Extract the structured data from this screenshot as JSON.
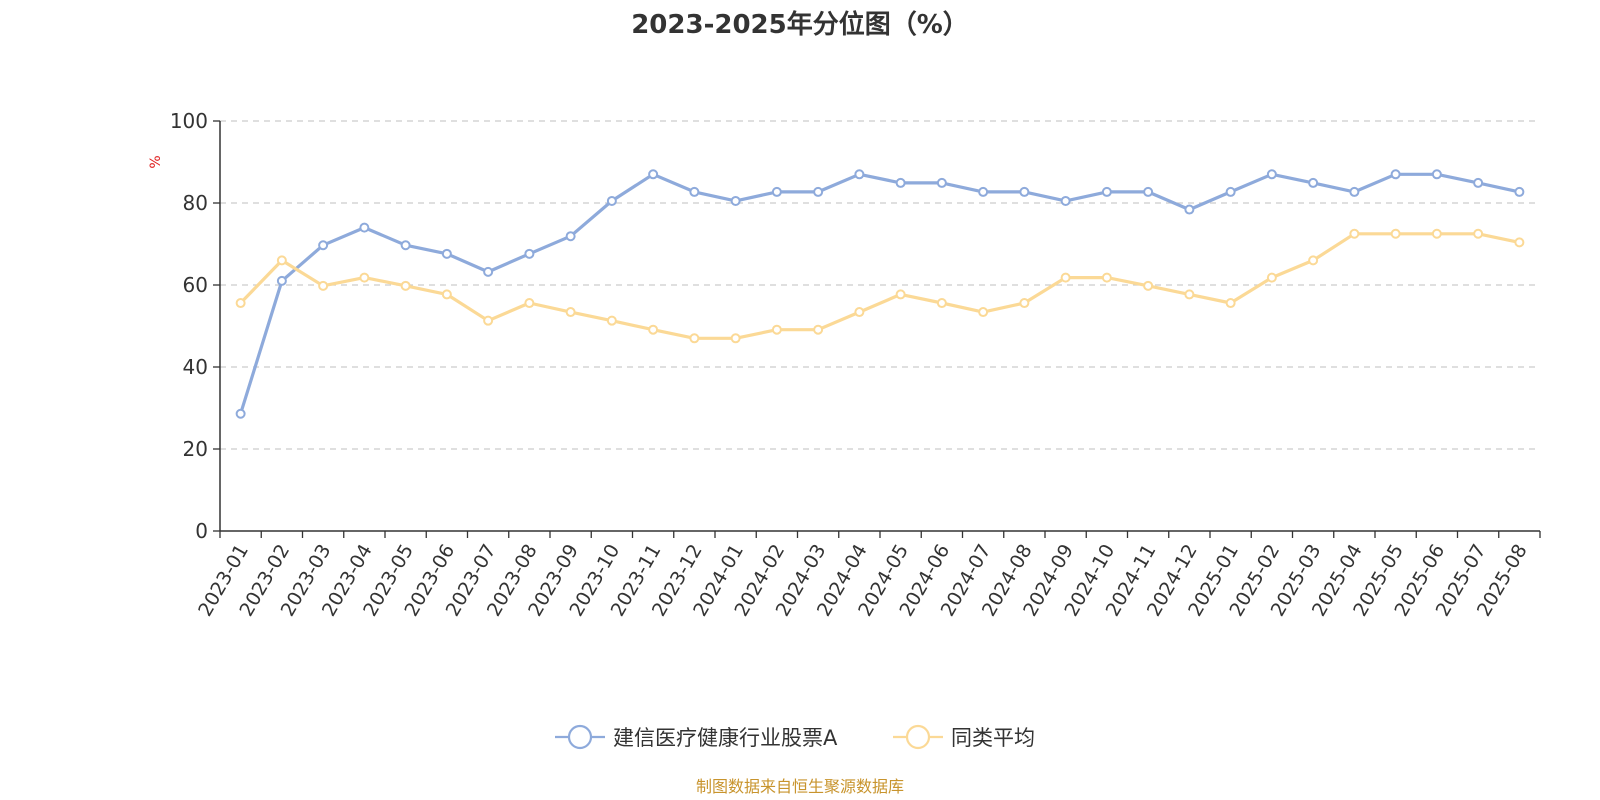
{
  "chart_data": {
    "type": "line",
    "title": "2023-2025年分位图（%）",
    "ylabel": "%",
    "xlabel": "",
    "ylim": [
      0,
      100
    ],
    "yticks": [
      "0",
      "20",
      "40",
      "60",
      "80",
      "100"
    ],
    "grid": "horizontal dashed",
    "legend_position": "bottom-center",
    "categories": [
      "2023-01",
      "2023-02",
      "2023-03",
      "2023-04",
      "2023-05",
      "2023-06",
      "2023-07",
      "2023-08",
      "2023-09",
      "2023-10",
      "2023-11",
      "2023-12",
      "2024-01",
      "2024-02",
      "2024-03",
      "2024-04",
      "2024-05",
      "2024-06",
      "2024-07",
      "2024-08",
      "2024-09",
      "2024-10",
      "2024-11",
      "2024-12",
      "2025-01",
      "2025-02",
      "2025-03",
      "2025-04",
      "2025-05",
      "2025-06",
      "2025-07",
      "2025-08"
    ],
    "series": [
      {
        "name": "建信医疗健康行业股票A",
        "color": "#8eaadb",
        "values": [
          28.6,
          61.0,
          69.7,
          74.0,
          69.7,
          67.6,
          63.2,
          67.6,
          71.9,
          80.5,
          87.0,
          82.7,
          80.5,
          82.7,
          82.7,
          87.0,
          84.9,
          84.9,
          82.7,
          82.7,
          80.5,
          82.7,
          82.7,
          78.4,
          82.7,
          87.0,
          84.9,
          82.7,
          87.0,
          87.0,
          84.9,
          82.7
        ]
      },
      {
        "name": "同类平均",
        "color": "#fbd996",
        "values": [
          55.6,
          66.0,
          59.8,
          61.8,
          59.8,
          57.7,
          51.3,
          55.6,
          53.4,
          51.3,
          49.1,
          47.0,
          47.0,
          49.1,
          49.1,
          53.4,
          57.7,
          55.6,
          53.4,
          55.6,
          61.8,
          61.8,
          59.8,
          57.7,
          55.6,
          61.8,
          66.0,
          72.5,
          72.5,
          72.5,
          72.5,
          70.4
        ]
      }
    ]
  },
  "source_note": "制图数据来自恒生聚源数据库",
  "colors": {
    "axis": "#333333",
    "grid": "#cccccc",
    "unit_label": "#e02020",
    "source_note": "#c8942d"
  }
}
